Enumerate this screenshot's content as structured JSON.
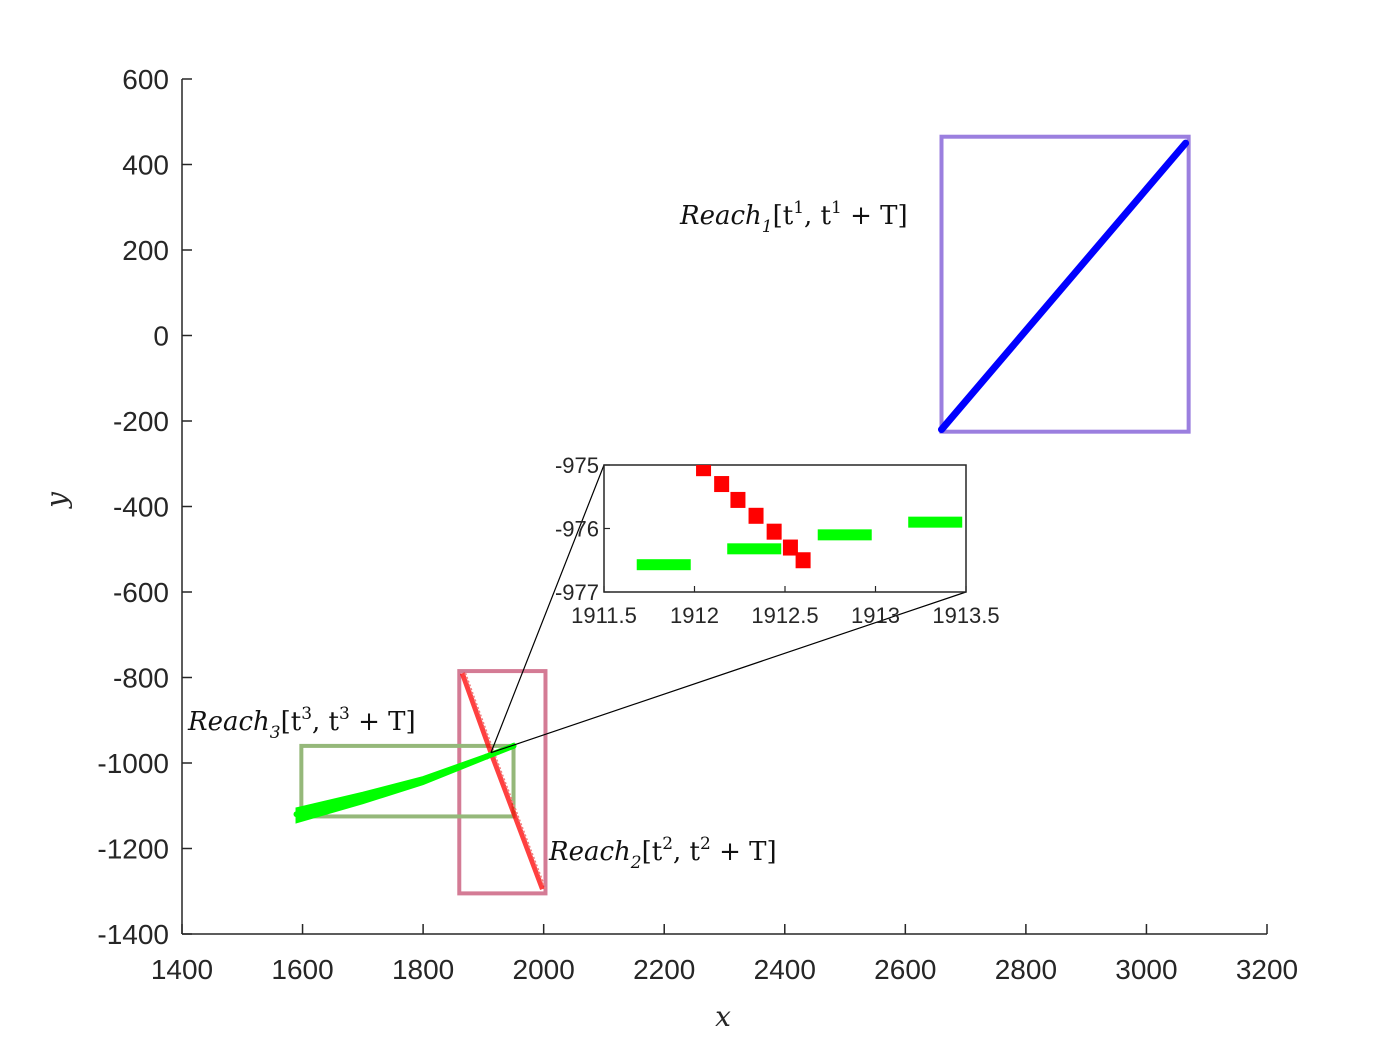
{
  "chart_data": [
    {
      "type": "scatter",
      "xlabel": "x",
      "ylabel": "y",
      "xlim": [
        1400,
        3200
      ],
      "ylim": [
        -1400,
        600
      ],
      "xticks": [
        "1400",
        "1600",
        "1800",
        "2000",
        "2200",
        "2400",
        "2600",
        "2800",
        "3000",
        "3200"
      ],
      "yticks": [
        "600",
        "400",
        "200",
        "0",
        "-200",
        "-400",
        "-600",
        "-800",
        "-1000",
        "-1200",
        "-1400"
      ],
      "grid": false,
      "series": [
        {
          "color": "#0000ff",
          "points": [
            [
              2660,
              -220
            ],
            [
              3065,
              450
            ]
          ]
        },
        {
          "color": "#ff0000",
          "points": [
            [
              1865,
              -790
            ],
            [
              1915,
              -985
            ],
            [
              1998,
              -1295
            ]
          ]
        },
        {
          "color": "#00ff00",
          "points": [
            [
              1590,
              -1120
            ],
            [
              1700,
              -1080
            ],
            [
              1800,
              -1040
            ],
            [
              1905,
              -985
            ],
            [
              1950,
              -960
            ]
          ]
        }
      ],
      "annotations": [
        {
          "text": "Reach_1[t^1, t^1+T]",
          "box_color": "#9b7fdf",
          "box": [
            [
              2660,
              -225
            ],
            [
              3070,
              465
            ]
          ]
        },
        {
          "text": "Reach_2[t^2, t^2+T]",
          "box_color": "#d47b95",
          "box": [
            [
              1860,
              -1305
            ],
            [
              2003,
              -785
            ]
          ]
        },
        {
          "text": "Reach_3[t^3, t^3+T]",
          "box_color": "#95b87a",
          "box": [
            [
              1598,
              -1125
            ],
            [
              1950,
              -960
            ]
          ]
        }
      ]
    },
    {
      "type": "scatter",
      "xlim": [
        1911.5,
        1913.5
      ],
      "ylim": [
        -977,
        -975
      ],
      "xticks": [
        "1911.5",
        "1912",
        "1912.5",
        "1913",
        "1913.5"
      ],
      "yticks": [
        "-975",
        "-976",
        "-977"
      ],
      "grid": false,
      "series": [
        {
          "color": "#ff0000",
          "points": [
            [
              1912.05,
              -975.05
            ],
            [
              1912.15,
              -975.3
            ],
            [
              1912.24,
              -975.55
            ],
            [
              1912.34,
              -975.8
            ],
            [
              1912.44,
              -976.05
            ],
            [
              1912.53,
              -976.3
            ],
            [
              1912.6,
              -976.5
            ]
          ]
        },
        {
          "color": "#00ff00",
          "points": [
            [
              1911.83,
              -976.57
            ],
            [
              1912.33,
              -976.32
            ],
            [
              1912.83,
              -976.1
            ],
            [
              1913.33,
              -975.9
            ]
          ]
        }
      ]
    }
  ],
  "labels": {
    "x_axis": "x",
    "y_axis": "y",
    "reach1": {
      "base": "Reach",
      "sub": "1",
      "pre": "[t",
      "sup": "1",
      "mid": ", t",
      "sup2": "1",
      "post": " + T]"
    },
    "reach2": {
      "base": "Reach",
      "sub": "2",
      "pre": "[t",
      "sup": "2",
      "mid": ", t",
      "sup2": "2",
      "post": " + T]"
    },
    "reach3": {
      "base": "Reach",
      "sub": "3",
      "pre": "[t",
      "sup": "3",
      "mid": ", t",
      "sup2": "3",
      "post": " + T]"
    }
  }
}
